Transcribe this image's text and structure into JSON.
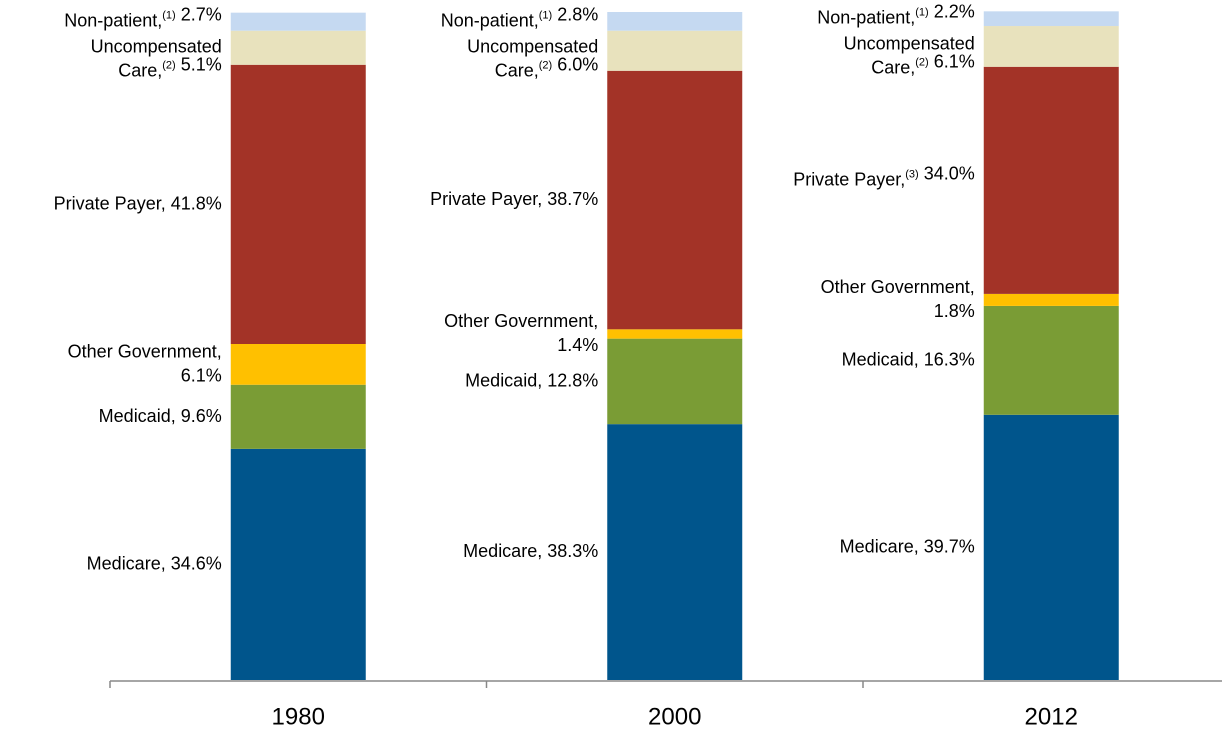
{
  "chart_data": {
    "type": "stacked-bar",
    "categories": [
      "1980",
      "2000",
      "2012"
    ],
    "ylim": [
      0,
      100
    ],
    "series": [
      {
        "color": "#00558c",
        "values": [
          34.6,
          38.3,
          39.7
        ],
        "value_labels": [
          "Medicare, 34.6%",
          "Medicare, 38.3%",
          "Medicare, 39.7%"
        ]
      },
      {
        "color": "#7a9c35",
        "values": [
          9.6,
          12.8,
          16.3
        ],
        "value_labels": [
          "Medicaid, 9.6%",
          "Medicaid, 12.8%",
          "Medicaid, 16.3%"
        ]
      },
      {
        "color": "#ffc000",
        "values": [
          6.1,
          1.4,
          1.8
        ],
        "value_labels": [
          "Other Government,\n6.1%",
          "Other Government,\n1.4%",
          "Other Government,\n1.8%"
        ]
      },
      {
        "color": "#a33327",
        "values": [
          41.8,
          38.7,
          34.0
        ],
        "value_labels": [
          "Private Payer, 41.8%",
          "Private Payer, 38.7%",
          "Private Payer,(3) 34.0%"
        ]
      },
      {
        "color": "#e8e2bd",
        "values": [
          5.1,
          6.0,
          6.1
        ],
        "value_labels": [
          "Uncompensated\nCare,(2) 5.1%",
          "Uncompensated\nCare,(2) 6.0%",
          "Uncompensated\nCare,(2) 6.1%"
        ]
      },
      {
        "color": "#c5d9f1",
        "values": [
          2.7,
          2.8,
          2.2
        ],
        "value_labels": [
          "Non-patient,(1) 2.7%",
          "Non-patient,(1) 2.8%",
          "Non-patient,(1) 2.2%"
        ]
      }
    ]
  }
}
